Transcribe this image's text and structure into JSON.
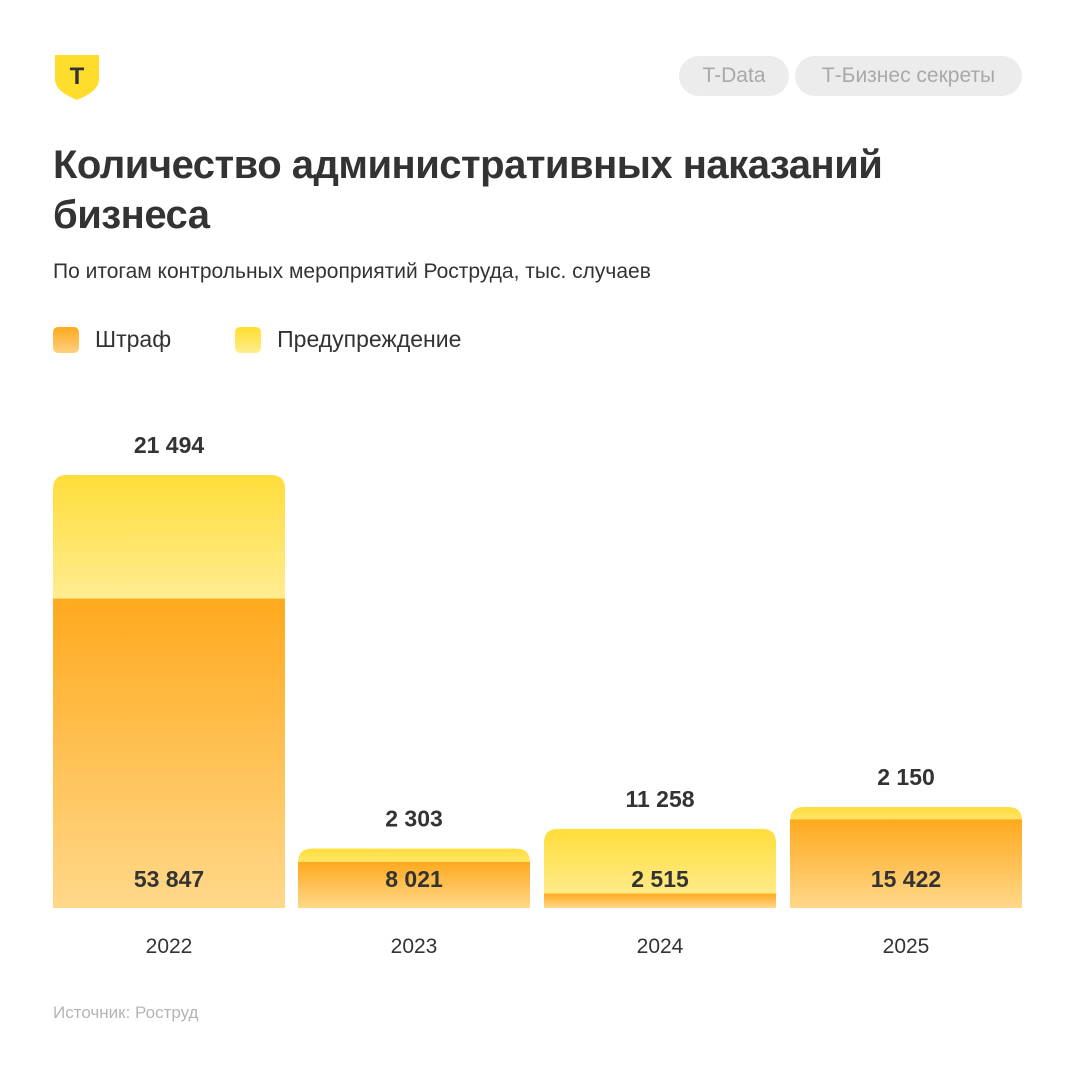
{
  "header": {
    "logo_letter": "Т",
    "tags": [
      "T-Data",
      "Т-Бизнес секреты"
    ]
  },
  "title": "Количество административных наказаний бизнеса",
  "subtitle": "По итогам контрольных мероприятий Роструда, тыс. случаев",
  "source": "Источник: Роструд",
  "colors": {
    "fine": "#FFA91E",
    "warning": "#FFDD2D",
    "text": "#333333",
    "muted": "#B5B5B5",
    "logo": "#FFDD2D"
  },
  "chart_data": {
    "type": "bar",
    "stacked": true,
    "categories": [
      "2022",
      "2023",
      "2024",
      "2025"
    ],
    "series": [
      {
        "name": "Штраф",
        "values": [
          53847,
          8021,
          2515,
          15422
        ],
        "labels": [
          "53 847",
          "8 021",
          "2 515",
          "15 422"
        ]
      },
      {
        "name": "Предупреждение",
        "values": [
          21494,
          2303,
          11258,
          2150
        ],
        "labels": [
          "21 494",
          "2 303",
          "11 258",
          "2 150"
        ]
      }
    ],
    "legend": "top-left",
    "grid": false,
    "ylim": [
      0,
      75341
    ]
  }
}
